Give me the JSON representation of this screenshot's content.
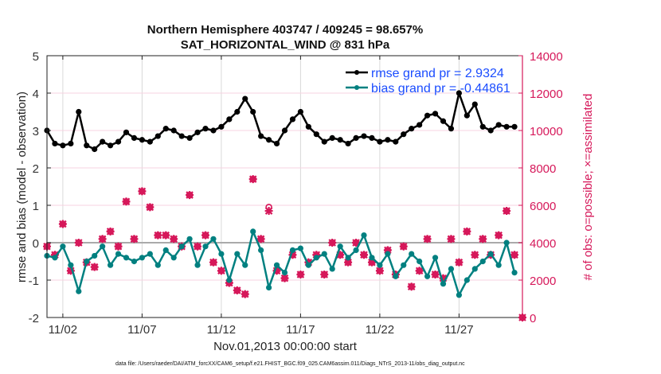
{
  "chart_data": {
    "type": "line",
    "title": [
      "Northern Hemisphere 403747 / 409245 = 98.657%",
      "SAT_HORIZONTAL_WIND @ 831 hPa"
    ],
    "xlabel": "Nov.01,2013 00:00:00 start",
    "ylabel": "rmse and bias (model - observation)",
    "ylabel_right": "# of obs: o=possible; ×=assimilated",
    "footer": "data file: /Users/raeder/DAI/ATM_forcXX/CAM6_setup/f.e21.FHIST_BGC.f09_025.CAM6assim.011/Diags_NTrS_2013-11/obs_diag_output.nc",
    "xlim": [
      "2013-11-01 00:00",
      "2013-12-01 00:00"
    ],
    "xticks": [
      {
        "date": "2013-11-02 00:00",
        "label": "11/02"
      },
      {
        "date": "2013-11-07 00:00",
        "label": "11/07"
      },
      {
        "date": "2013-11-12 00:00",
        "label": "11/12"
      },
      {
        "date": "2013-11-17 00:00",
        "label": "11/17"
      },
      {
        "date": "2013-11-22 00:00",
        "label": "11/22"
      },
      {
        "date": "2013-11-27 00:00",
        "label": "11/27"
      }
    ],
    "ylim": [
      -2,
      5
    ],
    "yticks": [
      "-2",
      "-1",
      "0",
      "1",
      "2",
      "3",
      "4",
      "5"
    ],
    "ylim_right": [
      0,
      14000
    ],
    "yticks_right": [
      "0",
      "2000",
      "4000",
      "6000",
      "8000",
      "10000",
      "12000",
      "14000"
    ],
    "grid": true,
    "legend_placement": "top-right",
    "colors": {
      "rmse": "#000000",
      "bias": "#008080",
      "obs": "#d6185a",
      "legend_text": "#1a4cff",
      "zero_line": "#aaaaaa"
    },
    "times": [
      "2013-11-01 00:00",
      "2013-11-01 12:00",
      "2013-11-02 00:00",
      "2013-11-02 12:00",
      "2013-11-03 00:00",
      "2013-11-03 12:00",
      "2013-11-04 00:00",
      "2013-11-04 12:00",
      "2013-11-05 00:00",
      "2013-11-05 12:00",
      "2013-11-06 00:00",
      "2013-11-06 12:00",
      "2013-11-07 00:00",
      "2013-11-07 12:00",
      "2013-11-08 00:00",
      "2013-11-08 12:00",
      "2013-11-09 00:00",
      "2013-11-09 12:00",
      "2013-11-10 00:00",
      "2013-11-10 12:00",
      "2013-11-11 00:00",
      "2013-11-11 12:00",
      "2013-11-12 00:00",
      "2013-11-12 12:00",
      "2013-11-13 00:00",
      "2013-11-13 12:00",
      "2013-11-14 00:00",
      "2013-11-14 12:00",
      "2013-11-15 00:00",
      "2013-11-15 12:00",
      "2013-11-16 00:00",
      "2013-11-16 12:00",
      "2013-11-17 00:00",
      "2013-11-17 12:00",
      "2013-11-18 00:00",
      "2013-11-18 12:00",
      "2013-11-19 00:00",
      "2013-11-19 12:00",
      "2013-11-20 00:00",
      "2013-11-20 12:00",
      "2013-11-21 00:00",
      "2013-11-21 12:00",
      "2013-11-22 00:00",
      "2013-11-22 12:00",
      "2013-11-23 00:00",
      "2013-11-23 12:00",
      "2013-11-24 00:00",
      "2013-11-24 12:00",
      "2013-11-25 00:00",
      "2013-11-25 12:00",
      "2013-11-26 00:00",
      "2013-11-26 12:00",
      "2013-11-27 00:00",
      "2013-11-27 12:00",
      "2013-11-28 00:00",
      "2013-11-28 12:00",
      "2013-11-29 00:00",
      "2013-11-29 12:00",
      "2013-11-30 00:00",
      "2013-11-30 12:00",
      "2013-12-01 00:00"
    ],
    "series": [
      {
        "name": "rmse grand pr = 2.9324",
        "axis": "left",
        "values": [
          3.0,
          2.65,
          2.6,
          2.65,
          3.5,
          2.6,
          2.5,
          2.7,
          2.6,
          2.7,
          2.95,
          2.8,
          2.75,
          2.7,
          2.85,
          3.05,
          3.0,
          2.85,
          2.8,
          2.95,
          3.05,
          3.0,
          3.1,
          3.3,
          3.5,
          3.85,
          3.5,
          2.85,
          2.75,
          2.65,
          3.0,
          3.3,
          3.5,
          3.1,
          2.9,
          2.7,
          2.8,
          2.75,
          2.65,
          2.8,
          2.85,
          2.8,
          2.7,
          2.75,
          2.7,
          2.9,
          3.05,
          3.15,
          3.4,
          3.45,
          3.25,
          3.05,
          4.0,
          3.4,
          3.7,
          3.1,
          3.0,
          3.15,
          3.1,
          3.1,
          null
        ]
      },
      {
        "name": "bias grand pr = -0.44861",
        "axis": "left",
        "values": [
          -0.35,
          -0.4,
          -0.1,
          -0.6,
          -1.3,
          -0.5,
          -0.35,
          -0.1,
          -0.6,
          -0.3,
          -0.4,
          -0.5,
          -0.4,
          -0.3,
          -0.6,
          -0.2,
          -0.4,
          -0.1,
          0.1,
          -0.6,
          -0.1,
          0.1,
          -0.3,
          -1.0,
          -0.3,
          -0.6,
          0.3,
          -0.2,
          -1.2,
          -0.6,
          -0.8,
          -0.2,
          -0.15,
          -0.6,
          -0.4,
          -0.3,
          -0.7,
          -0.1,
          -0.4,
          -0.2,
          0.2,
          -0.4,
          -0.6,
          -0.3,
          -0.9,
          -0.6,
          -0.3,
          -0.5,
          -0.9,
          -0.4,
          -1.1,
          -0.7,
          -1.4,
          -1.0,
          -0.7,
          -0.5,
          -0.3,
          -0.6,
          0.0,
          -0.8,
          null
        ]
      },
      {
        "name": "possible",
        "axis": "right",
        "values": [
          3800,
          3350,
          5000,
          2500,
          4000,
          2950,
          2700,
          4200,
          4600,
          3800,
          6200,
          4200,
          6750,
          5900,
          4400,
          4400,
          4200,
          3800,
          6550,
          3800,
          4400,
          2950,
          2500,
          1850,
          1450,
          1250,
          7400,
          4200,
          5900,
          2500,
          2100,
          3350,
          2300,
          2950,
          3350,
          2300,
          4000,
          3350,
          2950,
          4000,
          3350,
          2950,
          2500,
          3600,
          2300,
          3800,
          1650,
          2500,
          4200,
          2300,
          2100,
          4200,
          2950,
          4600,
          3350,
          4200,
          3350,
          4400,
          5700,
          3350,
          0
        ]
      },
      {
        "name": "assimilated",
        "axis": "right",
        "values": [
          3800,
          3350,
          5000,
          2500,
          4000,
          2950,
          2700,
          4200,
          4600,
          3800,
          6200,
          4200,
          6750,
          5900,
          4400,
          4400,
          4200,
          3800,
          6550,
          3800,
          4400,
          2950,
          2500,
          1850,
          1450,
          1250,
          7400,
          4200,
          5700,
          2500,
          2100,
          3350,
          2300,
          2950,
          3350,
          2300,
          4000,
          3350,
          2950,
          4000,
          3350,
          2950,
          2500,
          3600,
          2300,
          3800,
          1650,
          2500,
          4200,
          2300,
          2100,
          4200,
          2950,
          4600,
          3350,
          4200,
          3350,
          4400,
          5700,
          3350,
          0
        ]
      }
    ]
  }
}
